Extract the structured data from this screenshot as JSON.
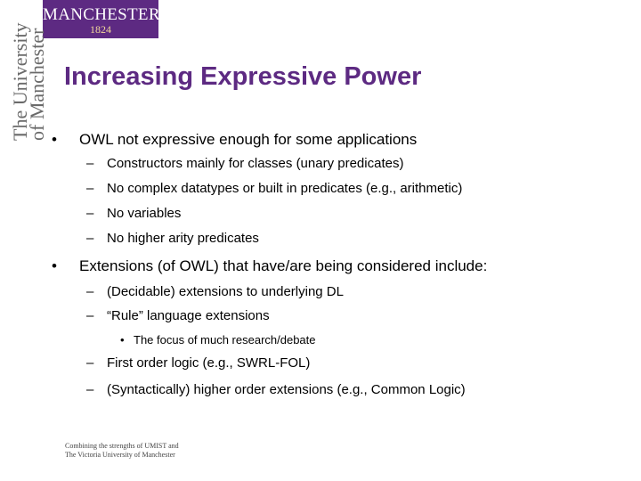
{
  "logo": {
    "name": "MANCHESTER",
    "year": "1824"
  },
  "side": {
    "line1": "The University",
    "line2": "of Manchester"
  },
  "title": "Increasing Expressive Power",
  "bullets": [
    "OWL not expressive enough for some applications",
    "Constructors mainly for classes (unary predicates)",
    "No complex datatypes or built in predicates (e.g., arithmetic)",
    "No variables",
    "No higher arity predicates",
    "Extensions (of OWL) that have/are being considered include:",
    "(Decidable) extensions to underlying DL",
    "“Rule” language extensions",
    "The focus of much research/debate",
    "First order logic (e.g., SWRL-FOL)",
    "(Syntactically) higher order extensions (e.g., Common Logic)"
  ],
  "marks": {
    "dot": "•",
    "dash": "–"
  },
  "footer": {
    "line1": "Combining the strengths of UMIST and",
    "line2": "The Victoria University of Manchester"
  },
  "colors": {
    "brand": "#5d2a82",
    "year": "#f2d89a",
    "side_text": "#6a6a6a"
  }
}
